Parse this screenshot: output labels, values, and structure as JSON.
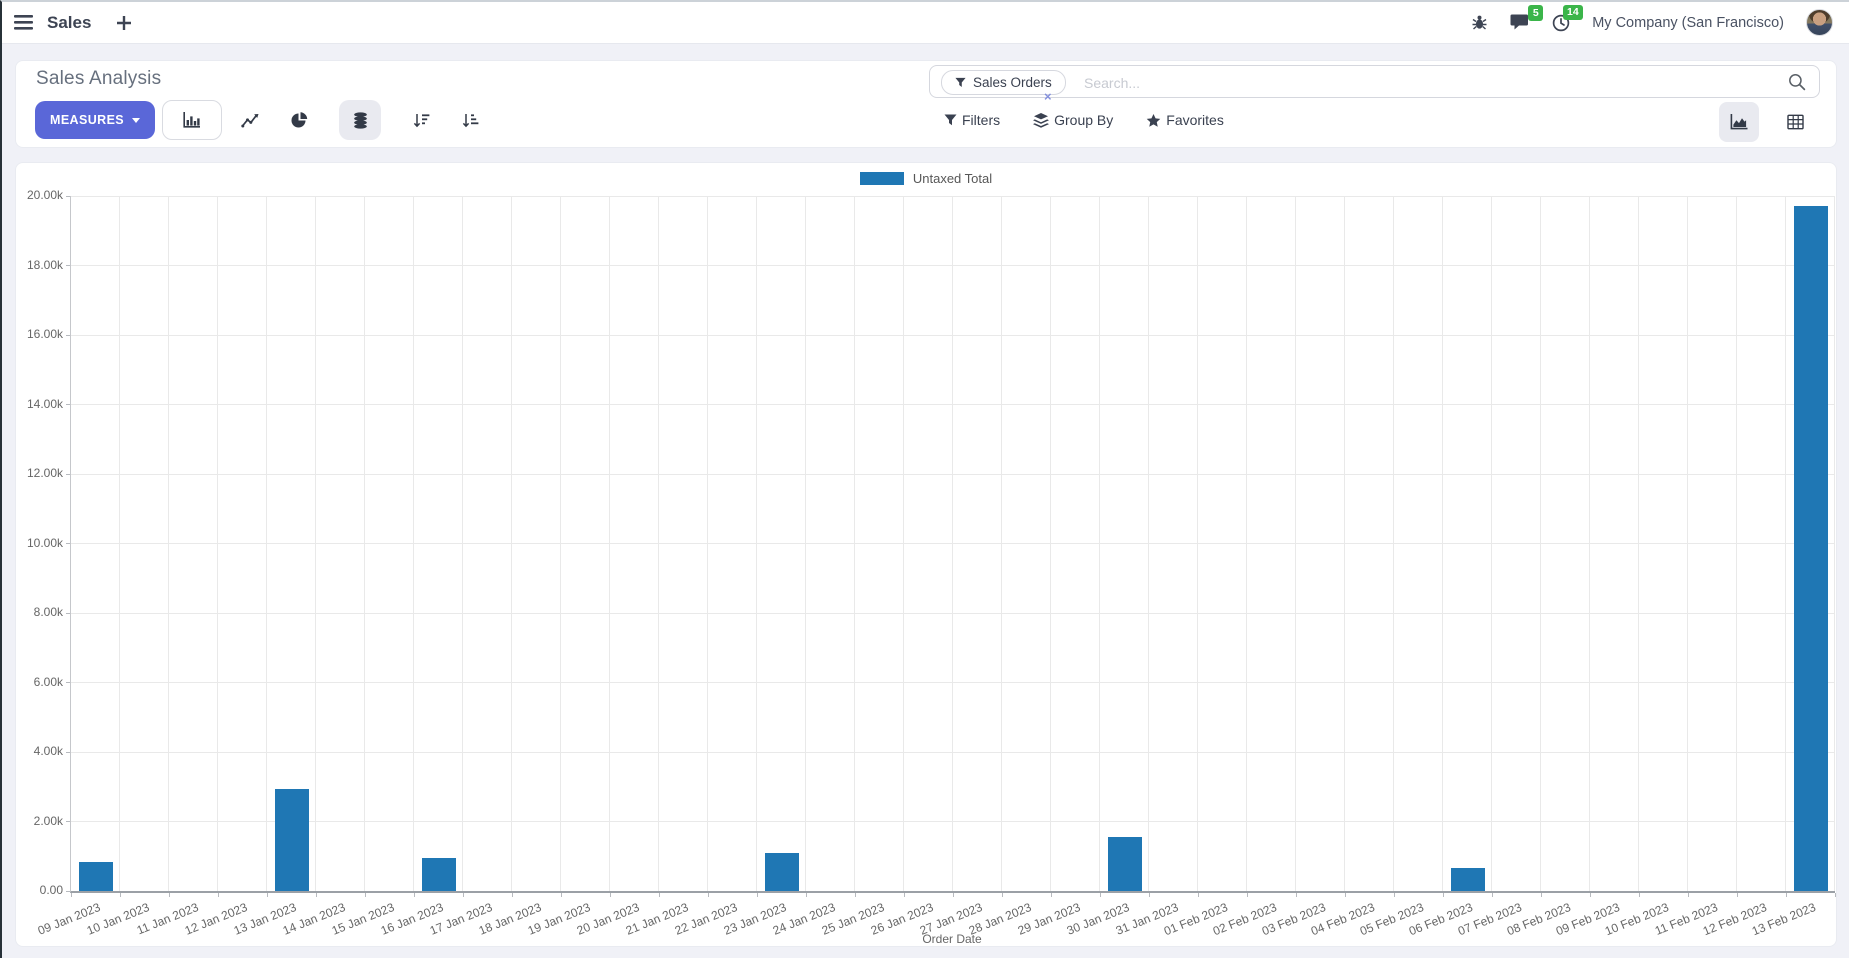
{
  "navbar": {
    "app_label": "Sales",
    "messages_badge": "5",
    "activities_badge": "14",
    "company": "My Company (San Francisco)"
  },
  "control_panel": {
    "title": "Sales Analysis",
    "measures_label": "MEASURES",
    "search": {
      "facet_label": "Sales Orders",
      "facet_remove_label": "×",
      "placeholder": "Search..."
    },
    "filters_label": "Filters",
    "group_by_label": "Group By",
    "favorites_label": "Favorites"
  },
  "icons": {
    "navbar": [
      "hamburger-icon",
      "plus-icon",
      "bug-icon",
      "chat-icon",
      "clock-icon"
    ],
    "controls": [
      "bar-chart-icon",
      "line-chart-icon",
      "pie-chart-icon",
      "stacked-icon",
      "sort-desc-icon",
      "sort-asc-icon",
      "funnel-icon",
      "layers-icon",
      "star-icon",
      "search-icon",
      "area-chart-icon",
      "pivot-grid-icon"
    ]
  },
  "colors": {
    "accent": "#5a67d8",
    "bar_series": "#1f77b4",
    "badge_green": "#3bb54a"
  },
  "chart_data": {
    "type": "bar",
    "title": "",
    "legend": [
      "Untaxed Total"
    ],
    "legend_position": "top-center",
    "series_color": "#1f77b4",
    "xlabel": "Order Date",
    "ylabel": "",
    "ylim": [
      0,
      20000
    ],
    "grid": true,
    "ytick_labels": [
      "0.00",
      "2.00k",
      "4.00k",
      "6.00k",
      "8.00k",
      "10.00k",
      "12.00k",
      "14.00k",
      "16.00k",
      "18.00k",
      "20.00k"
    ],
    "categories": [
      "09 Jan 2023",
      "10 Jan 2023",
      "11 Jan 2023",
      "12 Jan 2023",
      "13 Jan 2023",
      "14 Jan 2023",
      "15 Jan 2023",
      "16 Jan 2023",
      "17 Jan 2023",
      "18 Jan 2023",
      "19 Jan 2023",
      "20 Jan 2023",
      "21 Jan 2023",
      "22 Jan 2023",
      "23 Jan 2023",
      "24 Jan 2023",
      "25 Jan 2023",
      "26 Jan 2023",
      "27 Jan 2023",
      "28 Jan 2023",
      "29 Jan 2023",
      "30 Jan 2023",
      "31 Jan 2023",
      "01 Feb 2023",
      "02 Feb 2023",
      "03 Feb 2023",
      "04 Feb 2023",
      "05 Feb 2023",
      "06 Feb 2023",
      "07 Feb 2023",
      "08 Feb 2023",
      "09 Feb 2023",
      "10 Feb 2023",
      "11 Feb 2023",
      "12 Feb 2023",
      "13 Feb 2023"
    ],
    "values": [
      830,
      0,
      0,
      0,
      2930,
      0,
      0,
      950,
      0,
      0,
      0,
      0,
      0,
      0,
      1090,
      0,
      0,
      0,
      0,
      0,
      0,
      1550,
      0,
      0,
      0,
      0,
      0,
      0,
      660,
      0,
      0,
      0,
      0,
      0,
      0,
      19700
    ]
  }
}
